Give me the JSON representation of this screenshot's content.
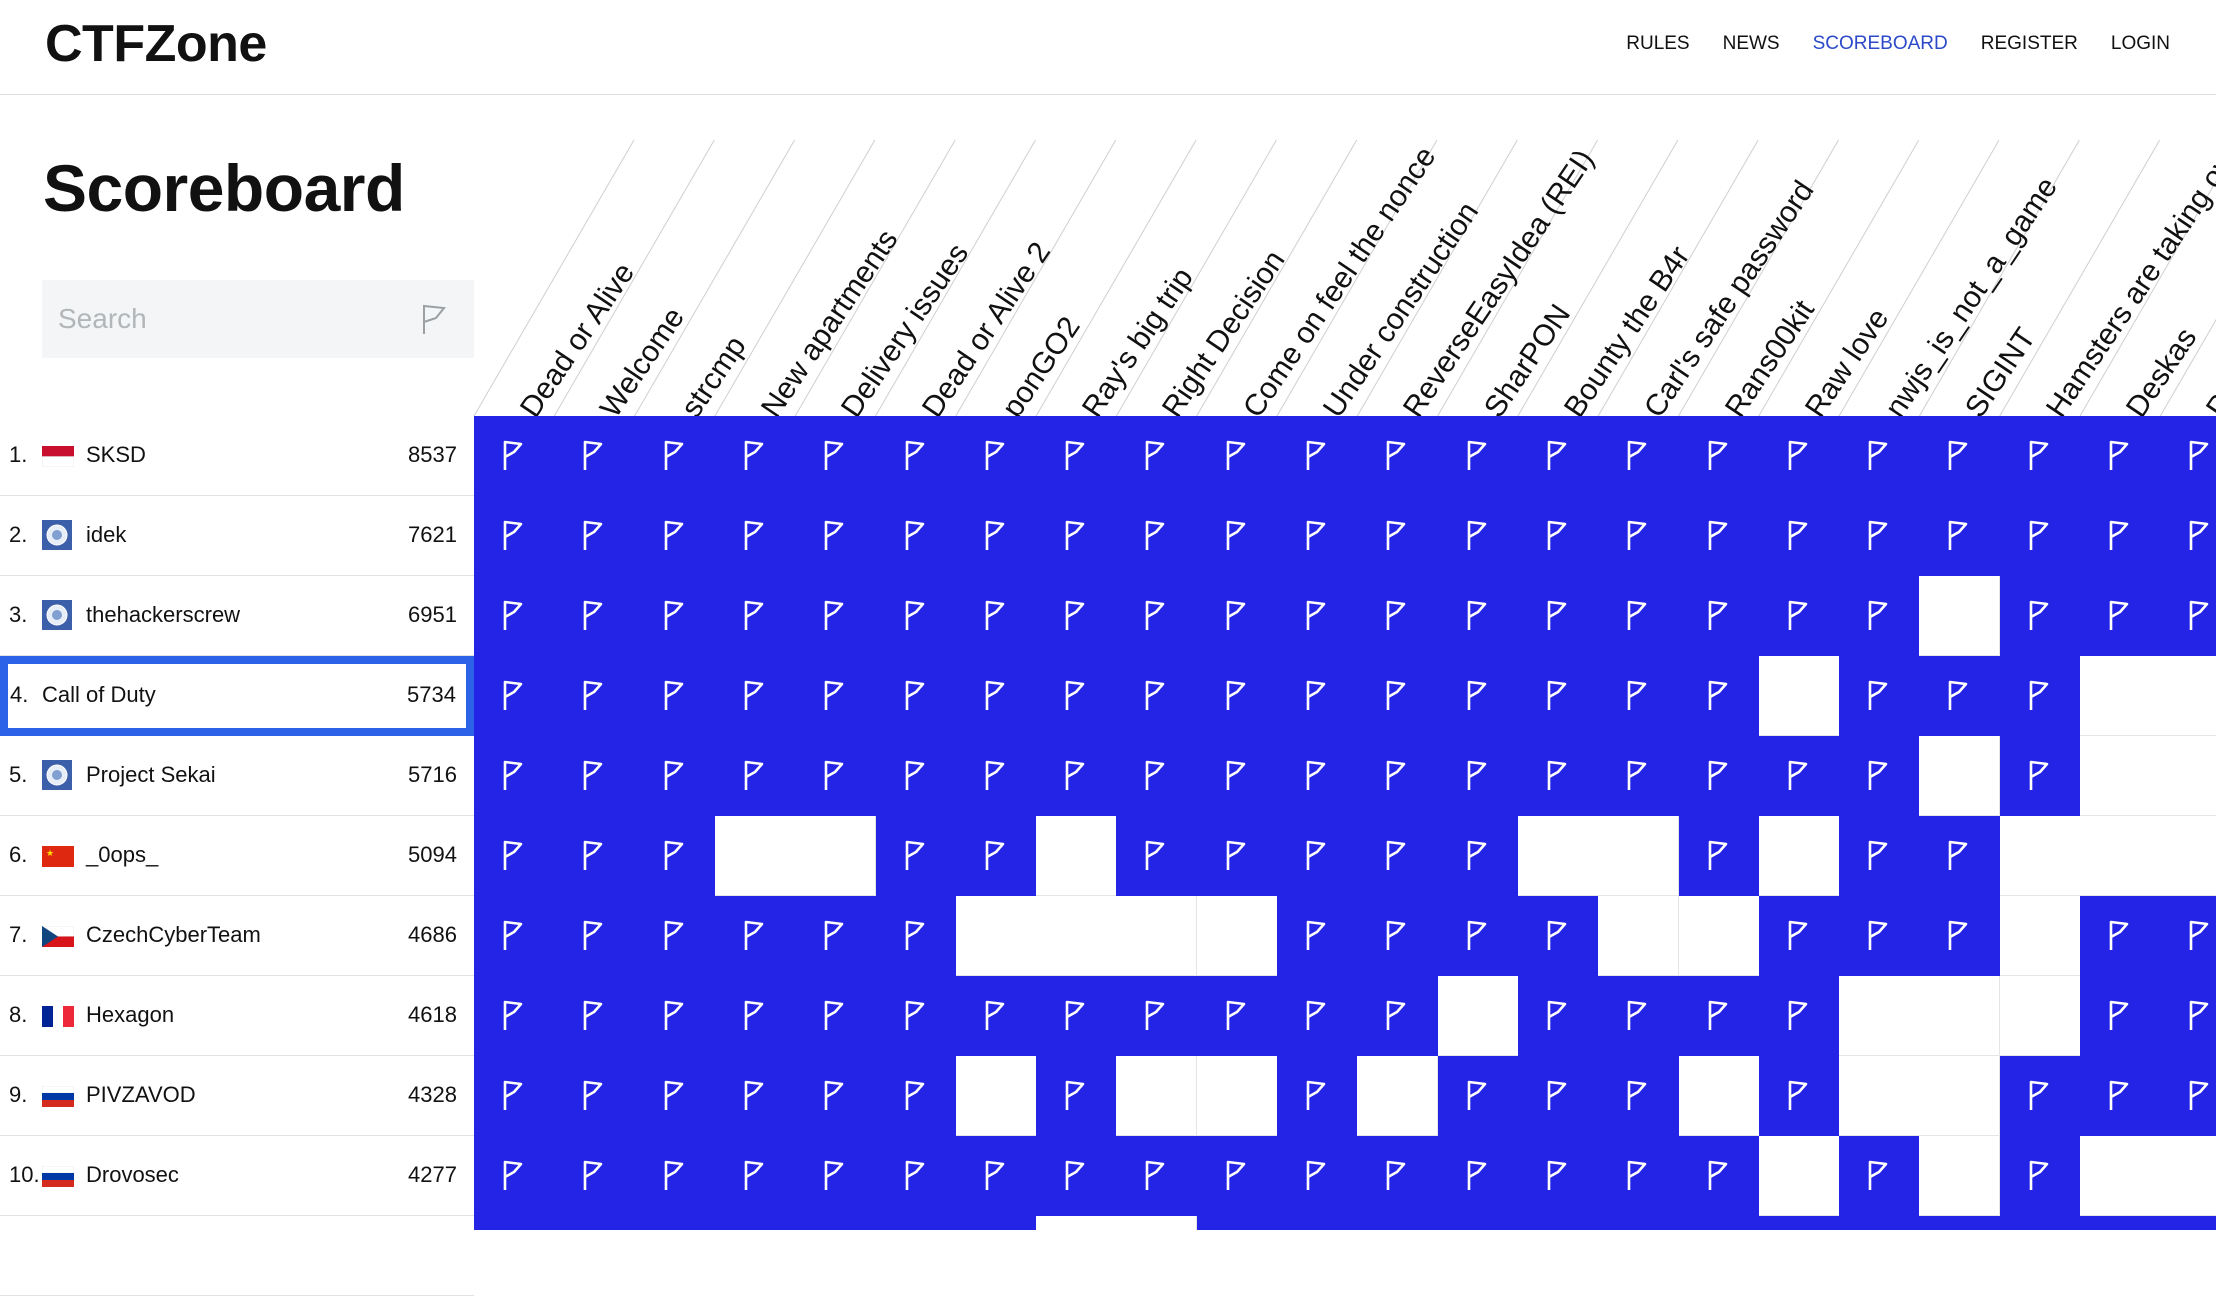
{
  "app": {
    "logo": "CTFZone"
  },
  "nav": {
    "items": [
      {
        "label": "RULES",
        "active": false
      },
      {
        "label": "NEWS",
        "active": false
      },
      {
        "label": "SCOREBOARD",
        "active": true
      },
      {
        "label": "REGISTER",
        "active": false
      },
      {
        "label": "LOGIN",
        "active": false
      }
    ]
  },
  "page": {
    "title": "Scoreboard"
  },
  "search": {
    "placeholder": "Search",
    "icon": "flag-icon"
  },
  "colors": {
    "solved": "#2424e6",
    "accent": "#2b49c9",
    "selected_border": "#2b62e8"
  },
  "challenges": [
    "Dead or Alive",
    "Welcome",
    "strcmp",
    "New apartments",
    "Delivery issues",
    "Dead or Alive 2",
    "ponGO2",
    "Ray's big trip",
    "Right Decision",
    "Come on feel the nonce",
    "Under construction",
    "ReverseEasyIdea (REI)",
    "SharPON",
    "Bounty the B4r",
    "Carl's safe password",
    "Rans00kit",
    "Raw love",
    "nwjs_is_not_a_game",
    "SIGINT",
    "Hamsters are taking ov...",
    "Deskas",
    "Pa"
  ],
  "teams": [
    {
      "rank": "1.",
      "name": "SKSD",
      "score": "8537",
      "flag": "red-white",
      "selected": false,
      "solved": [
        1,
        1,
        1,
        1,
        1,
        1,
        1,
        1,
        1,
        1,
        1,
        1,
        1,
        1,
        1,
        1,
        1,
        1,
        1,
        1,
        1,
        1
      ]
    },
    {
      "rank": "2.",
      "name": "idek",
      "score": "7621",
      "flag": "emblem",
      "selected": false,
      "solved": [
        1,
        1,
        1,
        1,
        1,
        1,
        1,
        1,
        1,
        1,
        1,
        1,
        1,
        1,
        1,
        1,
        1,
        1,
        1,
        1,
        1,
        1
      ]
    },
    {
      "rank": "3.",
      "name": "thehackerscrew",
      "score": "6951",
      "flag": "emblem",
      "selected": false,
      "solved": [
        1,
        1,
        1,
        1,
        1,
        1,
        1,
        1,
        1,
        1,
        1,
        1,
        1,
        1,
        1,
        1,
        1,
        1,
        0,
        1,
        1,
        1
      ]
    },
    {
      "rank": "4.",
      "name": "Call of Duty",
      "score": "5734",
      "flag": "none",
      "selected": true,
      "solved": [
        1,
        1,
        1,
        1,
        1,
        1,
        1,
        1,
        1,
        1,
        1,
        1,
        1,
        1,
        1,
        1,
        0,
        1,
        1,
        1,
        0,
        0
      ]
    },
    {
      "rank": "5.",
      "name": "Project Sekai",
      "score": "5716",
      "flag": "emblem",
      "selected": false,
      "solved": [
        1,
        1,
        1,
        1,
        1,
        1,
        1,
        1,
        1,
        1,
        1,
        1,
        1,
        1,
        1,
        1,
        1,
        1,
        0,
        1,
        0,
        0
      ]
    },
    {
      "rank": "6.",
      "name": "_0ops_",
      "score": "5094",
      "flag": "china",
      "selected": false,
      "solved": [
        1,
        1,
        1,
        0,
        0,
        1,
        1,
        0,
        1,
        1,
        1,
        1,
        1,
        0,
        0,
        1,
        0,
        1,
        1,
        0,
        0,
        0
      ]
    },
    {
      "rank": "7.",
      "name": "CzechCyberTeam",
      "score": "4686",
      "flag": "czech",
      "selected": false,
      "solved": [
        1,
        1,
        1,
        1,
        1,
        1,
        0,
        0,
        0,
        0,
        1,
        1,
        1,
        1,
        0,
        0,
        1,
        1,
        1,
        0,
        1,
        1
      ]
    },
    {
      "rank": "8.",
      "name": "Hexagon",
      "score": "4618",
      "flag": "france",
      "selected": false,
      "solved": [
        1,
        1,
        1,
        1,
        1,
        1,
        1,
        1,
        1,
        1,
        1,
        1,
        0,
        1,
        1,
        1,
        1,
        0,
        0,
        0,
        1,
        1
      ]
    },
    {
      "rank": "9.",
      "name": "PIVZAVOD",
      "score": "4328",
      "flag": "russia",
      "selected": false,
      "solved": [
        1,
        1,
        1,
        1,
        1,
        1,
        0,
        1,
        0,
        0,
        1,
        0,
        1,
        1,
        1,
        0,
        1,
        0,
        0,
        1,
        1,
        1
      ]
    },
    {
      "rank": "10.",
      "name": "Drovosec",
      "score": "4277",
      "flag": "russia",
      "selected": false,
      "solved": [
        1,
        1,
        1,
        1,
        1,
        1,
        1,
        1,
        1,
        1,
        1,
        1,
        1,
        1,
        1,
        1,
        0,
        1,
        0,
        1,
        0,
        0
      ]
    },
    {
      "rank": "",
      "name": "",
      "score": "",
      "flag": "none",
      "selected": false,
      "solved": [
        1,
        1,
        1,
        1,
        1,
        1,
        1,
        0,
        0,
        1,
        1,
        1,
        1,
        1,
        1,
        1,
        1,
        1,
        1,
        1,
        1,
        1
      ]
    }
  ]
}
